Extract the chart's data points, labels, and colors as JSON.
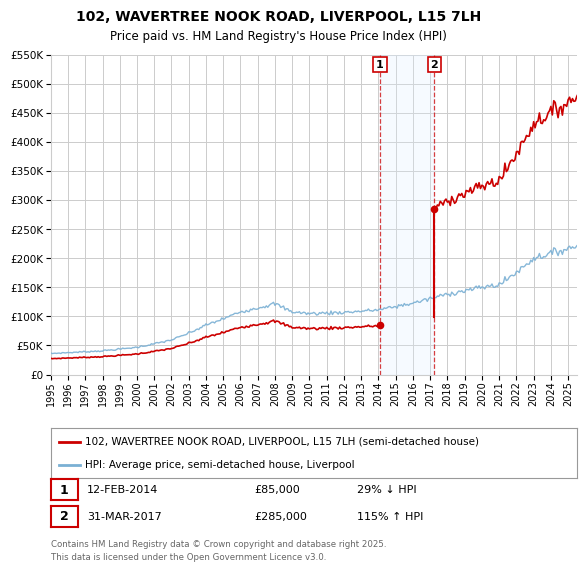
{
  "title": "102, WAVERTREE NOOK ROAD, LIVERPOOL, L15 7LH",
  "subtitle": "Price paid vs. HM Land Registry's House Price Index (HPI)",
  "legend_line1": "102, WAVERTREE NOOK ROAD, LIVERPOOL, L15 7LH (semi-detached house)",
  "legend_line2": "HPI: Average price, semi-detached house, Liverpool",
  "point1_date": "12-FEB-2014",
  "point1_price": "£85,000",
  "point1_hpi": "29% ↓ HPI",
  "point1_year": 2014.083,
  "point1_value": 85000,
  "point2_date": "31-MAR-2017",
  "point2_price": "£285,000",
  "point2_hpi": "115% ↑ HPI",
  "point2_year": 2017.25,
  "point2_value": 285000,
  "footer": "Contains HM Land Registry data © Crown copyright and database right 2025.\nThis data is licensed under the Open Government Licence v3.0.",
  "red_color": "#cc0000",
  "blue_color": "#7ab0d4",
  "shade_color": "#ddeeff",
  "ylim": [
    0,
    550000
  ],
  "xlim_start": 1995.0,
  "xlim_end": 2025.5,
  "yticks": [
    0,
    50000,
    100000,
    150000,
    200000,
    250000,
    300000,
    350000,
    400000,
    450000,
    500000,
    550000
  ],
  "xticks": [
    1995,
    1996,
    1997,
    1998,
    1999,
    2000,
    2001,
    2002,
    2003,
    2004,
    2005,
    2006,
    2007,
    2008,
    2009,
    2010,
    2011,
    2012,
    2013,
    2014,
    2015,
    2016,
    2017,
    2018,
    2019,
    2020,
    2021,
    2022,
    2023,
    2024,
    2025
  ],
  "grid_color": "#cccccc",
  "background_color": "#ffffff"
}
